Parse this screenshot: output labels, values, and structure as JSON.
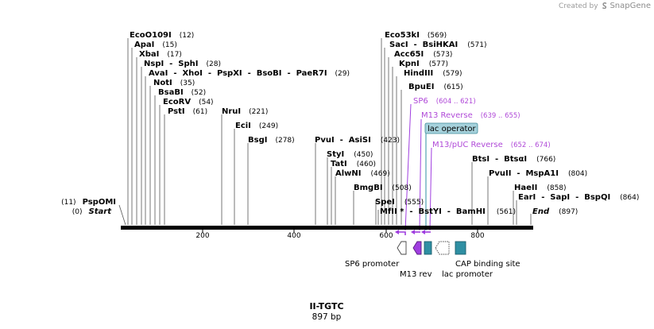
{
  "branding": {
    "prefix": "Created by",
    "name": "SnapGene"
  },
  "plasmid": {
    "name": "II-TGTC",
    "length_label": "897 bp"
  },
  "ends": [
    {
      "name": "Start",
      "pos": "(0)"
    },
    {
      "name": "End",
      "pos": "(897)"
    }
  ],
  "sites": [
    {
      "name": "EcoO109I",
      "pos": "(12)"
    },
    {
      "name": "ApaI",
      "pos": "(15)"
    },
    {
      "name": "XbaI",
      "pos": "(17)"
    },
    {
      "name": "NspI  -  SphI",
      "pos": "(28)"
    },
    {
      "name": "AvaI  -  XhoI  -  PspXI  -  BsoBI  -  PaeR7I",
      "pos": "(29)"
    },
    {
      "name": "NotI",
      "pos": "(35)"
    },
    {
      "name": "BsaBI",
      "pos": "(52)"
    },
    {
      "name": "EcoRV",
      "pos": "(54)"
    },
    {
      "name": "PstI",
      "pos": "(61)"
    },
    {
      "name": "NruI",
      "pos": "(221)"
    },
    {
      "name": "EciI",
      "pos": "(249)"
    },
    {
      "name": "BsgI",
      "pos": "(278)"
    },
    {
      "name": "PvuI  -  AsiSI",
      "pos": "(423)"
    },
    {
      "name": "StyI",
      "pos": "(450)"
    },
    {
      "name": "TatI",
      "pos": "(460)"
    },
    {
      "name": "AlwNI",
      "pos": "(469)"
    },
    {
      "name": "BmgBI",
      "pos": "(508)"
    },
    {
      "name": "SpeI",
      "pos": "(555)"
    },
    {
      "name": "MfII *  -  BstYI  -  BamHI",
      "pos": "(561)"
    },
    {
      "name": "Eco53kI",
      "pos": "(569)"
    },
    {
      "name": "SacI  -  BsiHKAI",
      "pos": "(571)"
    },
    {
      "name": "Acc65I",
      "pos": "(573)"
    },
    {
      "name": "KpnI",
      "pos": "(577)"
    },
    {
      "name": "HindIII",
      "pos": "(579)"
    },
    {
      "name": "BpuEI",
      "pos": "(615)"
    },
    {
      "name": "BtsI  -  BtsαI",
      "pos": "(766)"
    },
    {
      "name": "PvuII  -  MspA1I",
      "pos": "(804)"
    },
    {
      "name": "HaeII",
      "pos": "(858)"
    },
    {
      "name": "EarI  -  SapI  -  BspQI",
      "pos": "(864)"
    },
    {
      "name": "PspOMI",
      "pos": "(11)"
    }
  ],
  "primers": [
    {
      "name": "SP6",
      "range": "(604 .. 621)"
    },
    {
      "name": "M13 Reverse",
      "range": "(639 .. 655)"
    },
    {
      "name": "M13/pUC Reverse",
      "range": "(652 .. 674)"
    }
  ],
  "operator_label": "lac operator",
  "features": [
    {
      "name": "SP6 promoter"
    },
    {
      "name": "M13 rev"
    },
    {
      "name": "lac promoter"
    },
    {
      "name": "CAP binding site"
    }
  ],
  "ruler_ticks": [
    "200",
    "400",
    "600",
    "800"
  ],
  "colors": {
    "primer": "#a03ee0",
    "feature_teal": "#2f8fa3",
    "operator_fill": "#a6d2dc",
    "backbone": "#000000"
  }
}
